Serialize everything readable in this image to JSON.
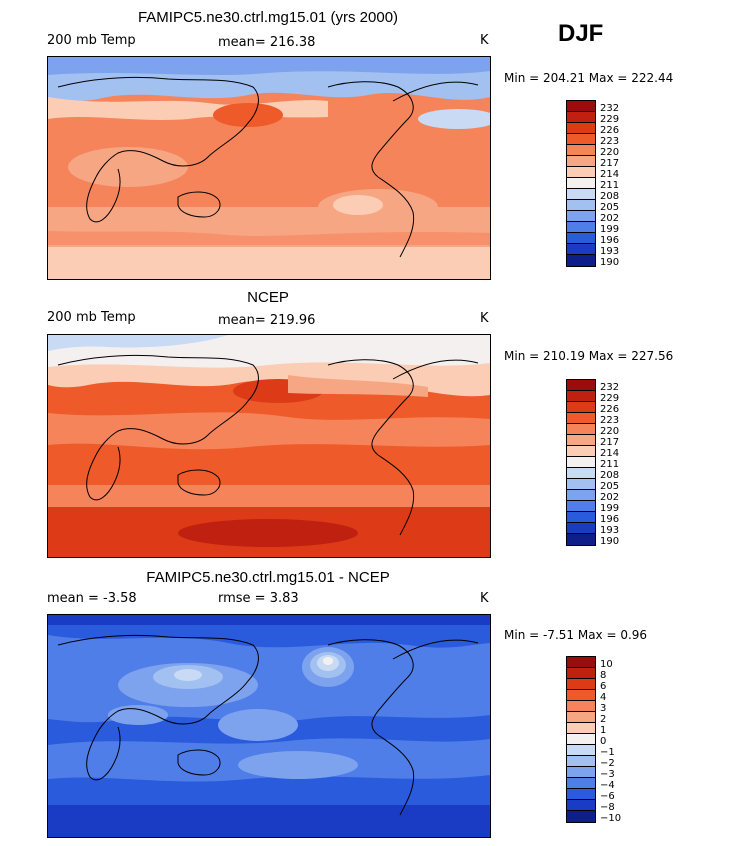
{
  "season": "DJF",
  "panels": [
    {
      "title": "FAMIPC5.ne30.ctrl.mg15.01 (yrs 2000)",
      "left_label": "200 mb Temp",
      "stat_label": "mean= 216.38",
      "units": "K",
      "minmax": "Min = 204.21 Max = 222.44",
      "levels": [
        "232",
        "229",
        "226",
        "223",
        "220",
        "217",
        "214",
        "211",
        "208",
        "205",
        "202",
        "199",
        "196",
        "193",
        "190"
      ]
    },
    {
      "title": "NCEP",
      "left_label": "200 mb Temp",
      "stat_label": "mean= 219.96",
      "units": "K",
      "minmax": "Min = 210.19 Max = 227.56",
      "levels": [
        "232",
        "229",
        "226",
        "223",
        "220",
        "217",
        "214",
        "211",
        "208",
        "205",
        "202",
        "199",
        "196",
        "193",
        "190"
      ]
    },
    {
      "title": "FAMIPC5.ne30.ctrl.mg15.01 - NCEP",
      "left_label": "mean =   -3.58",
      "stat_label": "rmse =    3.83",
      "units": "K",
      "minmax": "Min =  -7.51 Max =    0.96",
      "levels": [
        "10",
        "8",
        "6",
        "4",
        "3",
        "2",
        "1",
        "0",
        "−1",
        "−2",
        "−3",
        "−4",
        "−6",
        "−8",
        "−10"
      ]
    }
  ],
  "colors": {
    "scale": [
      "#9b0d0d",
      "#c02010",
      "#dd3a18",
      "#ee5a2a",
      "#f5845a",
      "#f7a684",
      "#fbcdb5",
      "#f5f0f0",
      "#c9dbf4",
      "#a2c0f0",
      "#7ea3ee",
      "#4f7ee8",
      "#2a5bdd",
      "#1a3cc4",
      "#0f1f8a"
    ]
  }
}
